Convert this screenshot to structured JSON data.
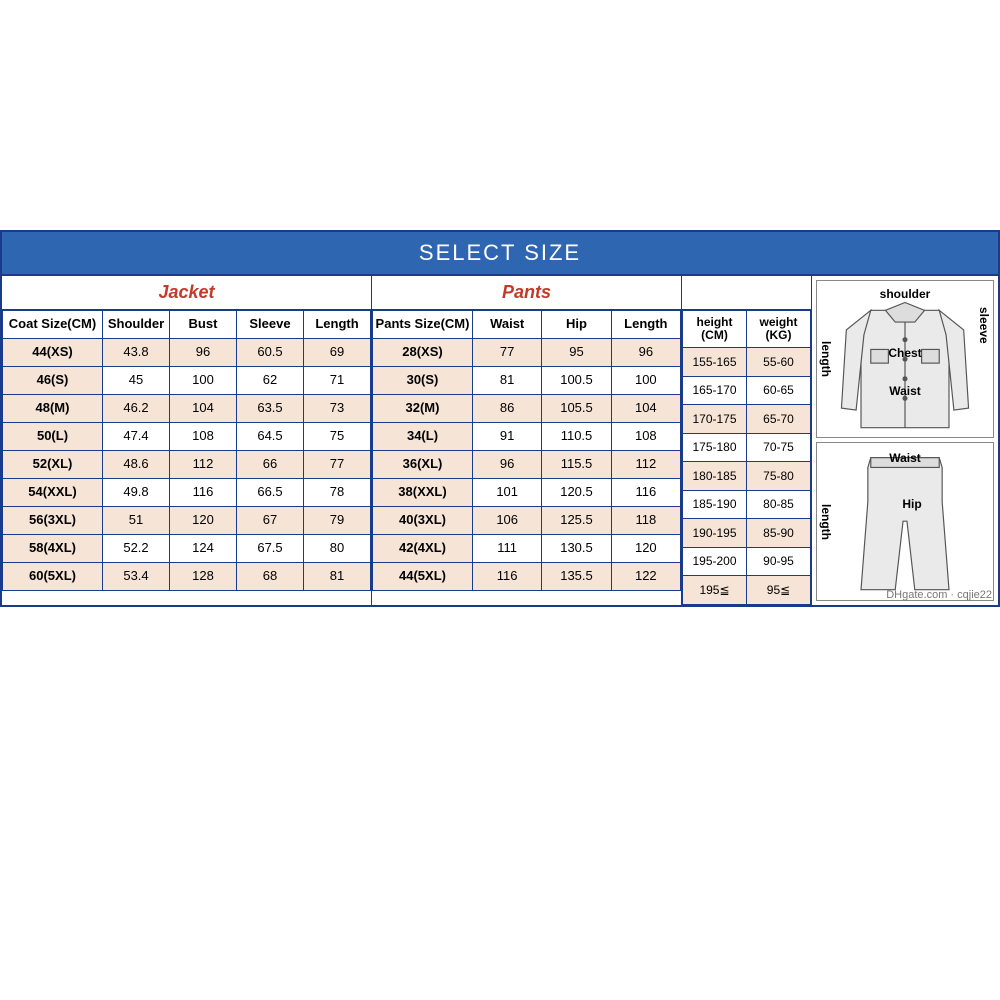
{
  "banner": "SELECT SIZE",
  "jacket": {
    "title": "Jacket",
    "columns": [
      "Coat Size(CM)",
      "Shoulder",
      "Bust",
      "Sleeve",
      "Length"
    ],
    "rows": [
      [
        "44(XS)",
        "43.8",
        "96",
        "60.5",
        "69"
      ],
      [
        "46(S)",
        "45",
        "100",
        "62",
        "71"
      ],
      [
        "48(M)",
        "46.2",
        "104",
        "63.5",
        "73"
      ],
      [
        "50(L)",
        "47.4",
        "108",
        "64.5",
        "75"
      ],
      [
        "52(XL)",
        "48.6",
        "112",
        "66",
        "77"
      ],
      [
        "54(XXL)",
        "49.8",
        "116",
        "66.5",
        "78"
      ],
      [
        "56(3XL)",
        "51",
        "120",
        "67",
        "79"
      ],
      [
        "58(4XL)",
        "52.2",
        "124",
        "67.5",
        "80"
      ],
      [
        "60(5XL)",
        "53.4",
        "128",
        "68",
        "81"
      ]
    ]
  },
  "pants": {
    "title": "Pants",
    "columns": [
      "Pants Size(CM)",
      "Waist",
      "Hip",
      "Length"
    ],
    "rows": [
      [
        "28(XS)",
        "77",
        "95",
        "96"
      ],
      [
        "30(S)",
        "81",
        "100.5",
        "100"
      ],
      [
        "32(M)",
        "86",
        "105.5",
        "104"
      ],
      [
        "34(L)",
        "91",
        "110.5",
        "108"
      ],
      [
        "36(XL)",
        "96",
        "115.5",
        "112"
      ],
      [
        "38(XXL)",
        "101",
        "120.5",
        "116"
      ],
      [
        "40(3XL)",
        "106",
        "125.5",
        "118"
      ],
      [
        "42(4XL)",
        "111",
        "130.5",
        "120"
      ],
      [
        "44(5XL)",
        "116",
        "135.5",
        "122"
      ]
    ]
  },
  "hw": {
    "columns": [
      "height\n(CM)",
      "weight\n(KG)"
    ],
    "rows": [
      [
        "155-165",
        "55-60"
      ],
      [
        "165-170",
        "60-65"
      ],
      [
        "170-175",
        "65-70"
      ],
      [
        "175-180",
        "70-75"
      ],
      [
        "180-185",
        "75-80"
      ],
      [
        "185-190",
        "80-85"
      ],
      [
        "190-195",
        "85-90"
      ],
      [
        "195-200",
        "90-95"
      ],
      [
        "195≦",
        "95≦"
      ]
    ]
  },
  "diagrams": {
    "jacket_labels": {
      "shoulder": "shoulder",
      "length": "length",
      "sleeve": "sleeve",
      "chest": "Chest",
      "waist": "Waist"
    },
    "pants_labels": {
      "waist": "Waist",
      "hip": "Hip",
      "length": "length"
    }
  },
  "watermark": "DHgate.com · cqjie22",
  "style": {
    "border_color": "#1a3a8a",
    "banner_bg": "#2f66b2",
    "banner_fg": "#ffffff",
    "alt_row_bg": "#f6e4d6",
    "title_color": "#c23a2a",
    "font": "Arial",
    "banner_fontsize": 22,
    "cell_fontsize": 13,
    "diagram_font": "Comic Sans MS"
  }
}
